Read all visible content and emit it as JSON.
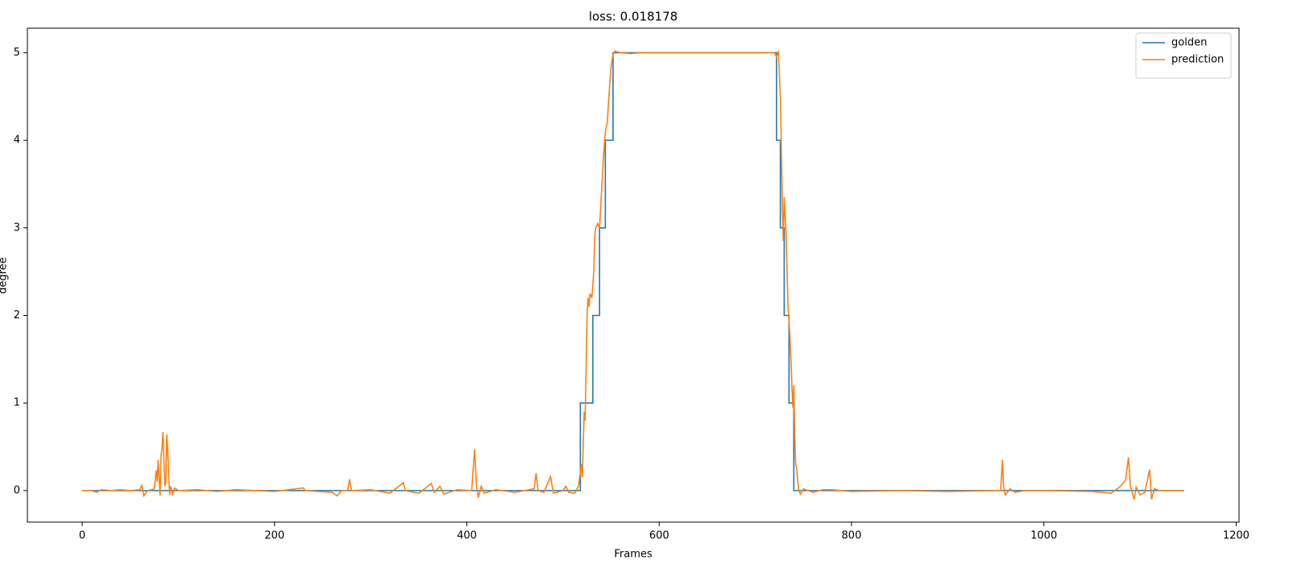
{
  "chart_data": {
    "type": "line",
    "title": "loss: 0.018178",
    "xlabel": "Frames",
    "ylabel": "degree",
    "xlim": [
      -57,
      1203
    ],
    "ylim": [
      -0.36,
      5.28
    ],
    "xticks": [
      0,
      200,
      400,
      600,
      800,
      1000,
      1200
    ],
    "yticks": [
      0,
      1,
      2,
      3,
      4,
      5
    ],
    "grid": false,
    "legend": "upper right",
    "series": [
      {
        "name": "golden",
        "color": "#1f77b4",
        "x": [
          0,
          518,
          518,
          531,
          531,
          538,
          538,
          544,
          544,
          552,
          552,
          722,
          722,
          726,
          726,
          730,
          730,
          735,
          735,
          740,
          740,
          1146
        ],
        "values": [
          0,
          0,
          1,
          1,
          2,
          2,
          3,
          3,
          4,
          4,
          5,
          5,
          4,
          4,
          3,
          3,
          2,
          2,
          1,
          1,
          0,
          0
        ]
      },
      {
        "name": "prediction",
        "color": "#ff7f0e",
        "x": [
          0,
          10,
          15,
          20,
          30,
          40,
          50,
          60,
          62,
          64,
          68,
          72,
          75,
          77,
          78,
          79,
          80,
          81,
          82,
          83,
          84,
          85,
          86,
          87,
          88,
          89,
          90,
          91,
          92,
          94,
          96,
          100,
          120,
          140,
          160,
          200,
          230,
          232,
          260,
          265,
          270,
          276,
          278,
          280,
          300,
          320,
          334,
          336,
          350,
          363,
          366,
          372,
          376,
          390,
          405,
          408,
          410,
          412,
          415,
          418,
          430,
          450,
          460,
          470,
          472,
          474,
          480,
          487,
          490,
          500,
          503,
          506,
          512,
          516,
          518,
          519,
          520,
          522,
          523,
          525,
          526,
          527,
          528,
          530,
          532,
          533,
          534,
          536,
          538,
          540,
          542,
          544,
          546,
          548,
          549,
          550,
          552,
          554,
          556,
          560,
          570,
          580,
          600,
          700,
          720,
          722,
          724,
          726,
          728,
          729,
          730,
          732,
          734,
          736,
          737,
          738,
          739,
          740,
          741,
          742,
          743,
          745,
          747,
          750,
          760,
          770,
          780,
          800,
          850,
          900,
          950,
          955,
          957,
          958,
          960,
          965,
          970,
          980,
          1000,
          1050,
          1070,
          1080,
          1085,
          1088,
          1090,
          1094,
          1096,
          1100,
          1105,
          1110,
          1112,
          1115,
          1120,
          1146
        ],
        "values": [
          0,
          0,
          -0.02,
          0.01,
          0,
          0.01,
          0,
          0.01,
          0.06,
          -0.06,
          0,
          0.01,
          0.02,
          0.23,
          0.1,
          0.35,
          0.15,
          -0.06,
          0.4,
          0.48,
          0.67,
          0.35,
          0.05,
          0.1,
          0.64,
          0.45,
          0.15,
          -0.05,
          0.05,
          -0.04,
          0.03,
          0,
          0.01,
          -0.01,
          0.01,
          -0.01,
          0.03,
          0,
          -0.02,
          -0.06,
          0,
          0,
          0.13,
          0,
          0.01,
          -0.03,
          0.09,
          0,
          -0.03,
          0.08,
          -0.02,
          0.05,
          -0.04,
          0.01,
          0,
          0.47,
          0.05,
          -0.08,
          0.05,
          -0.03,
          0.01,
          -0.02,
          0,
          0.02,
          0.2,
          0,
          -0.02,
          0.16,
          -0.03,
          0,
          0.05,
          -0.02,
          -0.03,
          0.05,
          0.2,
          0.3,
          0.15,
          0.9,
          0.8,
          2.0,
          2.2,
          2.1,
          2.25,
          2.2,
          2.5,
          2.9,
          3.0,
          3.05,
          3.0,
          3.4,
          3.8,
          4.1,
          4.2,
          4.55,
          4.7,
          4.85,
          4.98,
          5.02,
          5.01,
          5.0,
          4.99,
          5.0,
          5.0,
          5.0,
          5.0,
          4.95,
          5.02,
          4.5,
          3.3,
          2.85,
          3.35,
          2.9,
          2.1,
          1.75,
          1.5,
          1.2,
          0.95,
          1.2,
          0.6,
          0.3,
          0.25,
          0,
          -0.04,
          0.02,
          -0.02,
          0.01,
          0.01,
          -0.01,
          0,
          -0.01,
          0,
          0,
          0.35,
          0.05,
          -0.05,
          0.02,
          -0.02,
          0,
          0,
          -0.01,
          -0.03,
          0.05,
          0.12,
          0.38,
          0.05,
          -0.1,
          0.04,
          -0.05,
          -0.02,
          0.24,
          -0.1,
          0.02,
          0,
          0
        ]
      }
    ]
  }
}
